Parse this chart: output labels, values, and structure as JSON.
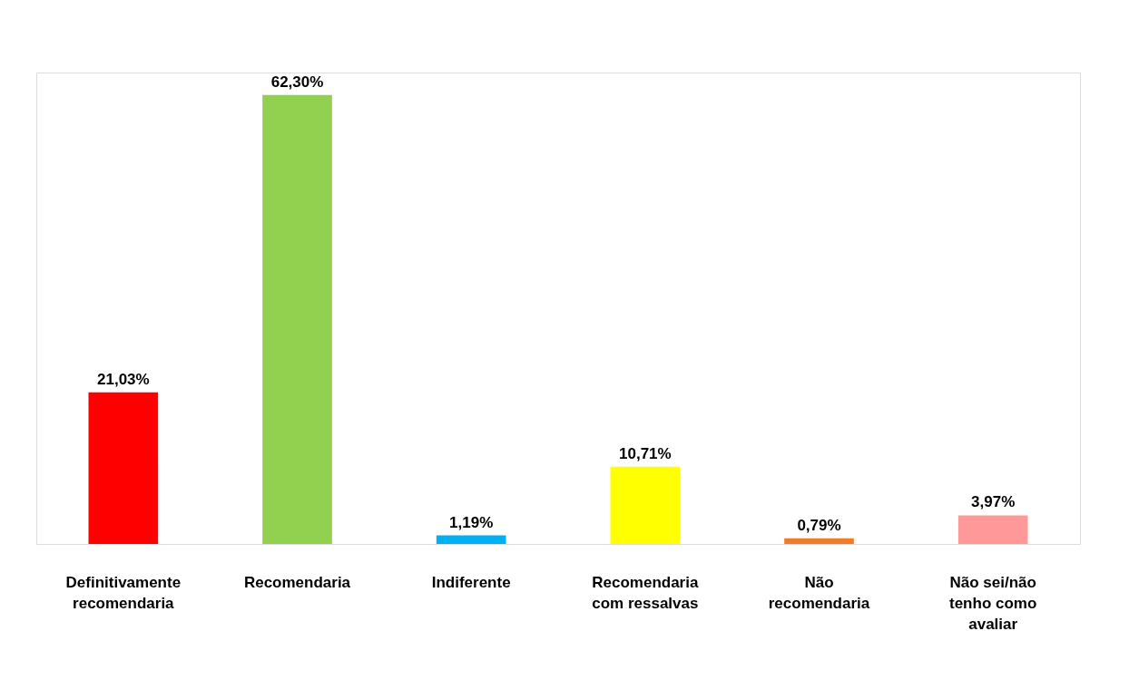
{
  "chart_data": {
    "type": "bar",
    "categories": [
      "Definitivamente recomendaria",
      "Recomendaria",
      "Indiferente",
      "Recomendaria com ressalvas",
      "Não recomendaria",
      "Não sei/não tenho como avaliar"
    ],
    "values": [
      21.03,
      62.3,
      1.19,
      10.71,
      0.79,
      3.97
    ],
    "colors": [
      "#ff0000",
      "#92d050",
      "#00b0f0",
      "#ffff00",
      "#f07c2a",
      "#ff9999"
    ],
    "value_labels": [
      "21,03%",
      "62,30%",
      "1,19%",
      "10,71%",
      "0,79%",
      "3,97%"
    ]
  }
}
